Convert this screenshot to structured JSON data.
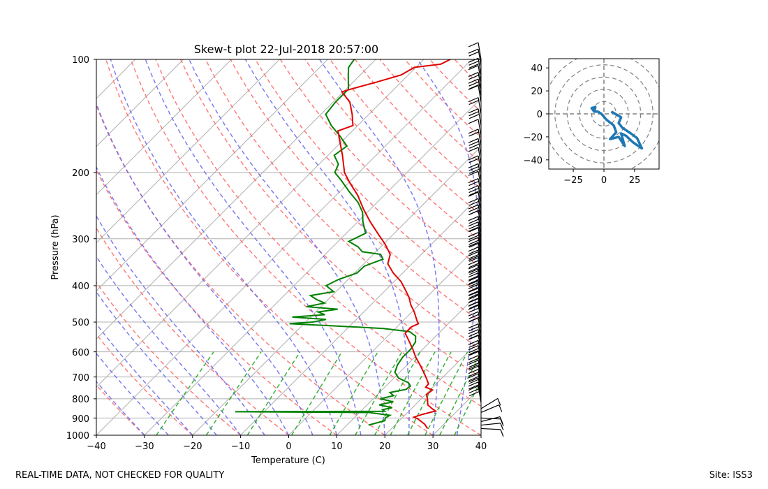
{
  "footer": {
    "left": "REAL-TIME DATA, NOT CHECKED FOR QUALITY",
    "right": "Site: ISS3"
  },
  "chart_data": [
    {
      "type": "line",
      "subtype": "skew-t",
      "title": "Skew-t plot 22-Jul-2018 20:57:00",
      "xlabel": "Temperature (C)",
      "ylabel": "Pressure (hPa)",
      "xlim": [
        -40,
        40
      ],
      "ylim": [
        1000,
        100
      ],
      "x_ticks": [
        "−40",
        "−30",
        "−20",
        "−10",
        "0",
        "10",
        "20",
        "30",
        "40"
      ],
      "y_ticks": [
        "100",
        "200",
        "300",
        "400",
        "500",
        "600",
        "700",
        "800",
        "900",
        "1000"
      ],
      "temperature_profile": {
        "color": "#e00000",
        "points": [
          {
            "p": 960,
            "t": 27.5
          },
          {
            "p": 935,
            "t": 26.0
          },
          {
            "p": 905,
            "t": 23.5
          },
          {
            "p": 895,
            "t": 22.3
          },
          {
            "p": 880,
            "t": 23.5
          },
          {
            "p": 862,
            "t": 25.5
          },
          {
            "p": 850,
            "t": 24.3
          },
          {
            "p": 830,
            "t": 22.6
          },
          {
            "p": 800,
            "t": 21.3
          },
          {
            "p": 780,
            "t": 20.2
          },
          {
            "p": 758,
            "t": 20.5
          },
          {
            "p": 745,
            "t": 18.5
          },
          {
            "p": 730,
            "t": 18.4
          },
          {
            "p": 710,
            "t": 17.1
          },
          {
            "p": 680,
            "t": 15.0
          },
          {
            "p": 650,
            "t": 12.7
          },
          {
            "p": 620,
            "t": 10.2
          },
          {
            "p": 590,
            "t": 7.9
          },
          {
            "p": 560,
            "t": 5.3
          },
          {
            "p": 535,
            "t": 3.0
          },
          {
            "p": 515,
            "t": 3.0
          },
          {
            "p": 505,
            "t": 3.8
          },
          {
            "p": 495,
            "t": 2.8
          },
          {
            "p": 470,
            "t": 0.5
          },
          {
            "p": 450,
            "t": -1.7
          },
          {
            "p": 430,
            "t": -3.6
          },
          {
            "p": 410,
            "t": -6.0
          },
          {
            "p": 390,
            "t": -8.6
          },
          {
            "p": 370,
            "t": -12.0
          },
          {
            "p": 350,
            "t": -15.0
          },
          {
            "p": 330,
            "t": -16.5
          },
          {
            "p": 310,
            "t": -19.7
          },
          {
            "p": 290,
            "t": -23.5
          },
          {
            "p": 270,
            "t": -27.5
          },
          {
            "p": 250,
            "t": -31.5
          },
          {
            "p": 230,
            "t": -35.5
          },
          {
            "p": 212,
            "t": -40.0
          },
          {
            "p": 200,
            "t": -43.0
          },
          {
            "p": 180,
            "t": -47.0
          },
          {
            "p": 165,
            "t": -50.5
          },
          {
            "p": 155,
            "t": -53.0
          },
          {
            "p": 150,
            "t": -51.0
          },
          {
            "p": 140,
            "t": -53.5
          },
          {
            "p": 130,
            "t": -56.5
          },
          {
            "p": 122,
            "t": -60.3
          },
          {
            "p": 120,
            "t": -59.0
          },
          {
            "p": 115,
            "t": -55.2
          },
          {
            "p": 110,
            "t": -51.5
          },
          {
            "p": 105,
            "t": -50.3
          },
          {
            "p": 103,
            "t": -45.5
          },
          {
            "p": 100,
            "t": -44.5
          }
        ]
      },
      "dewpoint_profile": {
        "color": "#008000",
        "points": [
          {
            "p": 940,
            "t": 14.5
          },
          {
            "p": 930,
            "t": 15.5
          },
          {
            "p": 915,
            "t": 17.0
          },
          {
            "p": 900,
            "t": 16.5
          },
          {
            "p": 885,
            "t": 16.9
          },
          {
            "p": 870,
            "t": 12.0
          },
          {
            "p": 866,
            "t": -16.0
          },
          {
            "p": 864,
            "t": 15.0
          },
          {
            "p": 855,
            "t": 14.2
          },
          {
            "p": 845,
            "t": 15.8
          },
          {
            "p": 830,
            "t": 12.5
          },
          {
            "p": 815,
            "t": 14.8
          },
          {
            "p": 800,
            "t": 11.5
          },
          {
            "p": 785,
            "t": 13.6
          },
          {
            "p": 770,
            "t": 12.2
          },
          {
            "p": 755,
            "t": 14.9
          },
          {
            "p": 740,
            "t": 15.1
          },
          {
            "p": 725,
            "t": 14.0
          },
          {
            "p": 705,
            "t": 11.0
          },
          {
            "p": 680,
            "t": 9.0
          },
          {
            "p": 650,
            "t": 8.0
          },
          {
            "p": 620,
            "t": 7.5
          },
          {
            "p": 590,
            "t": 7.5
          },
          {
            "p": 565,
            "t": 7.0
          },
          {
            "p": 545,
            "t": 5.8
          },
          {
            "p": 530,
            "t": 3.6
          },
          {
            "p": 520,
            "t": -2.5
          },
          {
            "p": 512,
            "t": -13.0
          },
          {
            "p": 505,
            "t": -23.0
          },
          {
            "p": 500,
            "t": -18.5
          },
          {
            "p": 492,
            "t": -16.3
          },
          {
            "p": 485,
            "t": -23.8
          },
          {
            "p": 478,
            "t": -17.5
          },
          {
            "p": 470,
            "t": -19.5
          },
          {
            "p": 462,
            "t": -16.0
          },
          {
            "p": 455,
            "t": -23.0
          },
          {
            "p": 445,
            "t": -20.0
          },
          {
            "p": 435,
            "t": -22.5
          },
          {
            "p": 425,
            "t": -24.5
          },
          {
            "p": 415,
            "t": -20.5
          },
          {
            "p": 400,
            "t": -23.3
          },
          {
            "p": 385,
            "t": -22.0
          },
          {
            "p": 370,
            "t": -19.5
          },
          {
            "p": 355,
            "t": -19.4
          },
          {
            "p": 340,
            "t": -17.0
          },
          {
            "p": 330,
            "t": -18.5
          },
          {
            "p": 325,
            "t": -22.8
          },
          {
            "p": 315,
            "t": -24.8
          },
          {
            "p": 305,
            "t": -27.8
          },
          {
            "p": 290,
            "t": -26.0
          },
          {
            "p": 270,
            "t": -29.0
          },
          {
            "p": 255,
            "t": -31.0
          },
          {
            "p": 240,
            "t": -34.0
          },
          {
            "p": 225,
            "t": -38.0
          },
          {
            "p": 210,
            "t": -42.0
          },
          {
            "p": 200,
            "t": -45.0
          },
          {
            "p": 190,
            "t": -46.0
          },
          {
            "p": 180,
            "t": -48.7
          },
          {
            "p": 170,
            "t": -48.0
          },
          {
            "p": 160,
            "t": -51.5
          },
          {
            "p": 150,
            "t": -55.5
          },
          {
            "p": 140,
            "t": -59.0
          },
          {
            "p": 130,
            "t": -59.5
          },
          {
            "p": 120,
            "t": -59.5
          },
          {
            "p": 110,
            "t": -62.5
          },
          {
            "p": 105,
            "t": -64.0
          },
          {
            "p": 100,
            "t": -64.5
          }
        ]
      },
      "wind_barbs": {
        "levels": [
          100,
          104,
          110,
          115,
          120,
          125,
          130,
          140,
          150,
          160,
          170,
          180,
          190,
          200,
          210,
          220,
          230,
          240,
          250,
          260,
          270,
          280,
          290,
          300,
          310,
          320,
          330,
          340,
          350,
          360,
          370,
          380,
          390,
          400,
          410,
          420,
          430,
          440,
          450,
          460,
          470,
          480,
          490,
          500,
          520,
          540,
          560,
          580,
          600,
          620,
          640,
          660,
          680,
          700,
          720,
          740,
          760,
          780,
          800,
          820,
          850,
          870,
          900,
          920,
          940,
          960
        ]
      },
      "reference_lines": {
        "dry_adiabats_color": "#ff6666",
        "moist_adiabats_color": "#6666ee",
        "mixing_ratio_color": "#22aa22",
        "isotherms_color": "#b0b0b0"
      }
    },
    {
      "type": "line",
      "subtype": "hodograph",
      "xlim": [
        -45,
        45
      ],
      "ylim": [
        -48,
        48
      ],
      "x_ticks": [
        "−25",
        "0",
        "25"
      ],
      "y_ticks": [
        "40",
        "20",
        "0",
        "−20",
        "−40"
      ],
      "rings": [
        10,
        20,
        30,
        40,
        50
      ],
      "color": "#1f77b4",
      "points": [
        {
          "u": 6,
          "v": 2
        },
        {
          "u": 14,
          "v": -3
        },
        {
          "u": 12,
          "v": -8
        },
        {
          "u": 15,
          "v": -12
        },
        {
          "u": 22,
          "v": -17
        },
        {
          "u": 27,
          "v": -21
        },
        {
          "u": 31,
          "v": -30
        },
        {
          "u": 24,
          "v": -25
        },
        {
          "u": 18,
          "v": -19
        },
        {
          "u": 14,
          "v": -17
        },
        {
          "u": 17,
          "v": -28
        },
        {
          "u": 12,
          "v": -20
        },
        {
          "u": 5,
          "v": -22
        },
        {
          "u": 10,
          "v": -16
        },
        {
          "u": 8,
          "v": -10
        },
        {
          "u": 2,
          "v": -5
        },
        {
          "u": -2,
          "v": 0
        },
        {
          "u": -5,
          "v": 2
        },
        {
          "u": -8,
          "v": 2
        },
        {
          "u": -10,
          "v": 5
        },
        {
          "u": -7,
          "v": 6
        },
        {
          "u": -8,
          "v": 1
        }
      ]
    }
  ]
}
